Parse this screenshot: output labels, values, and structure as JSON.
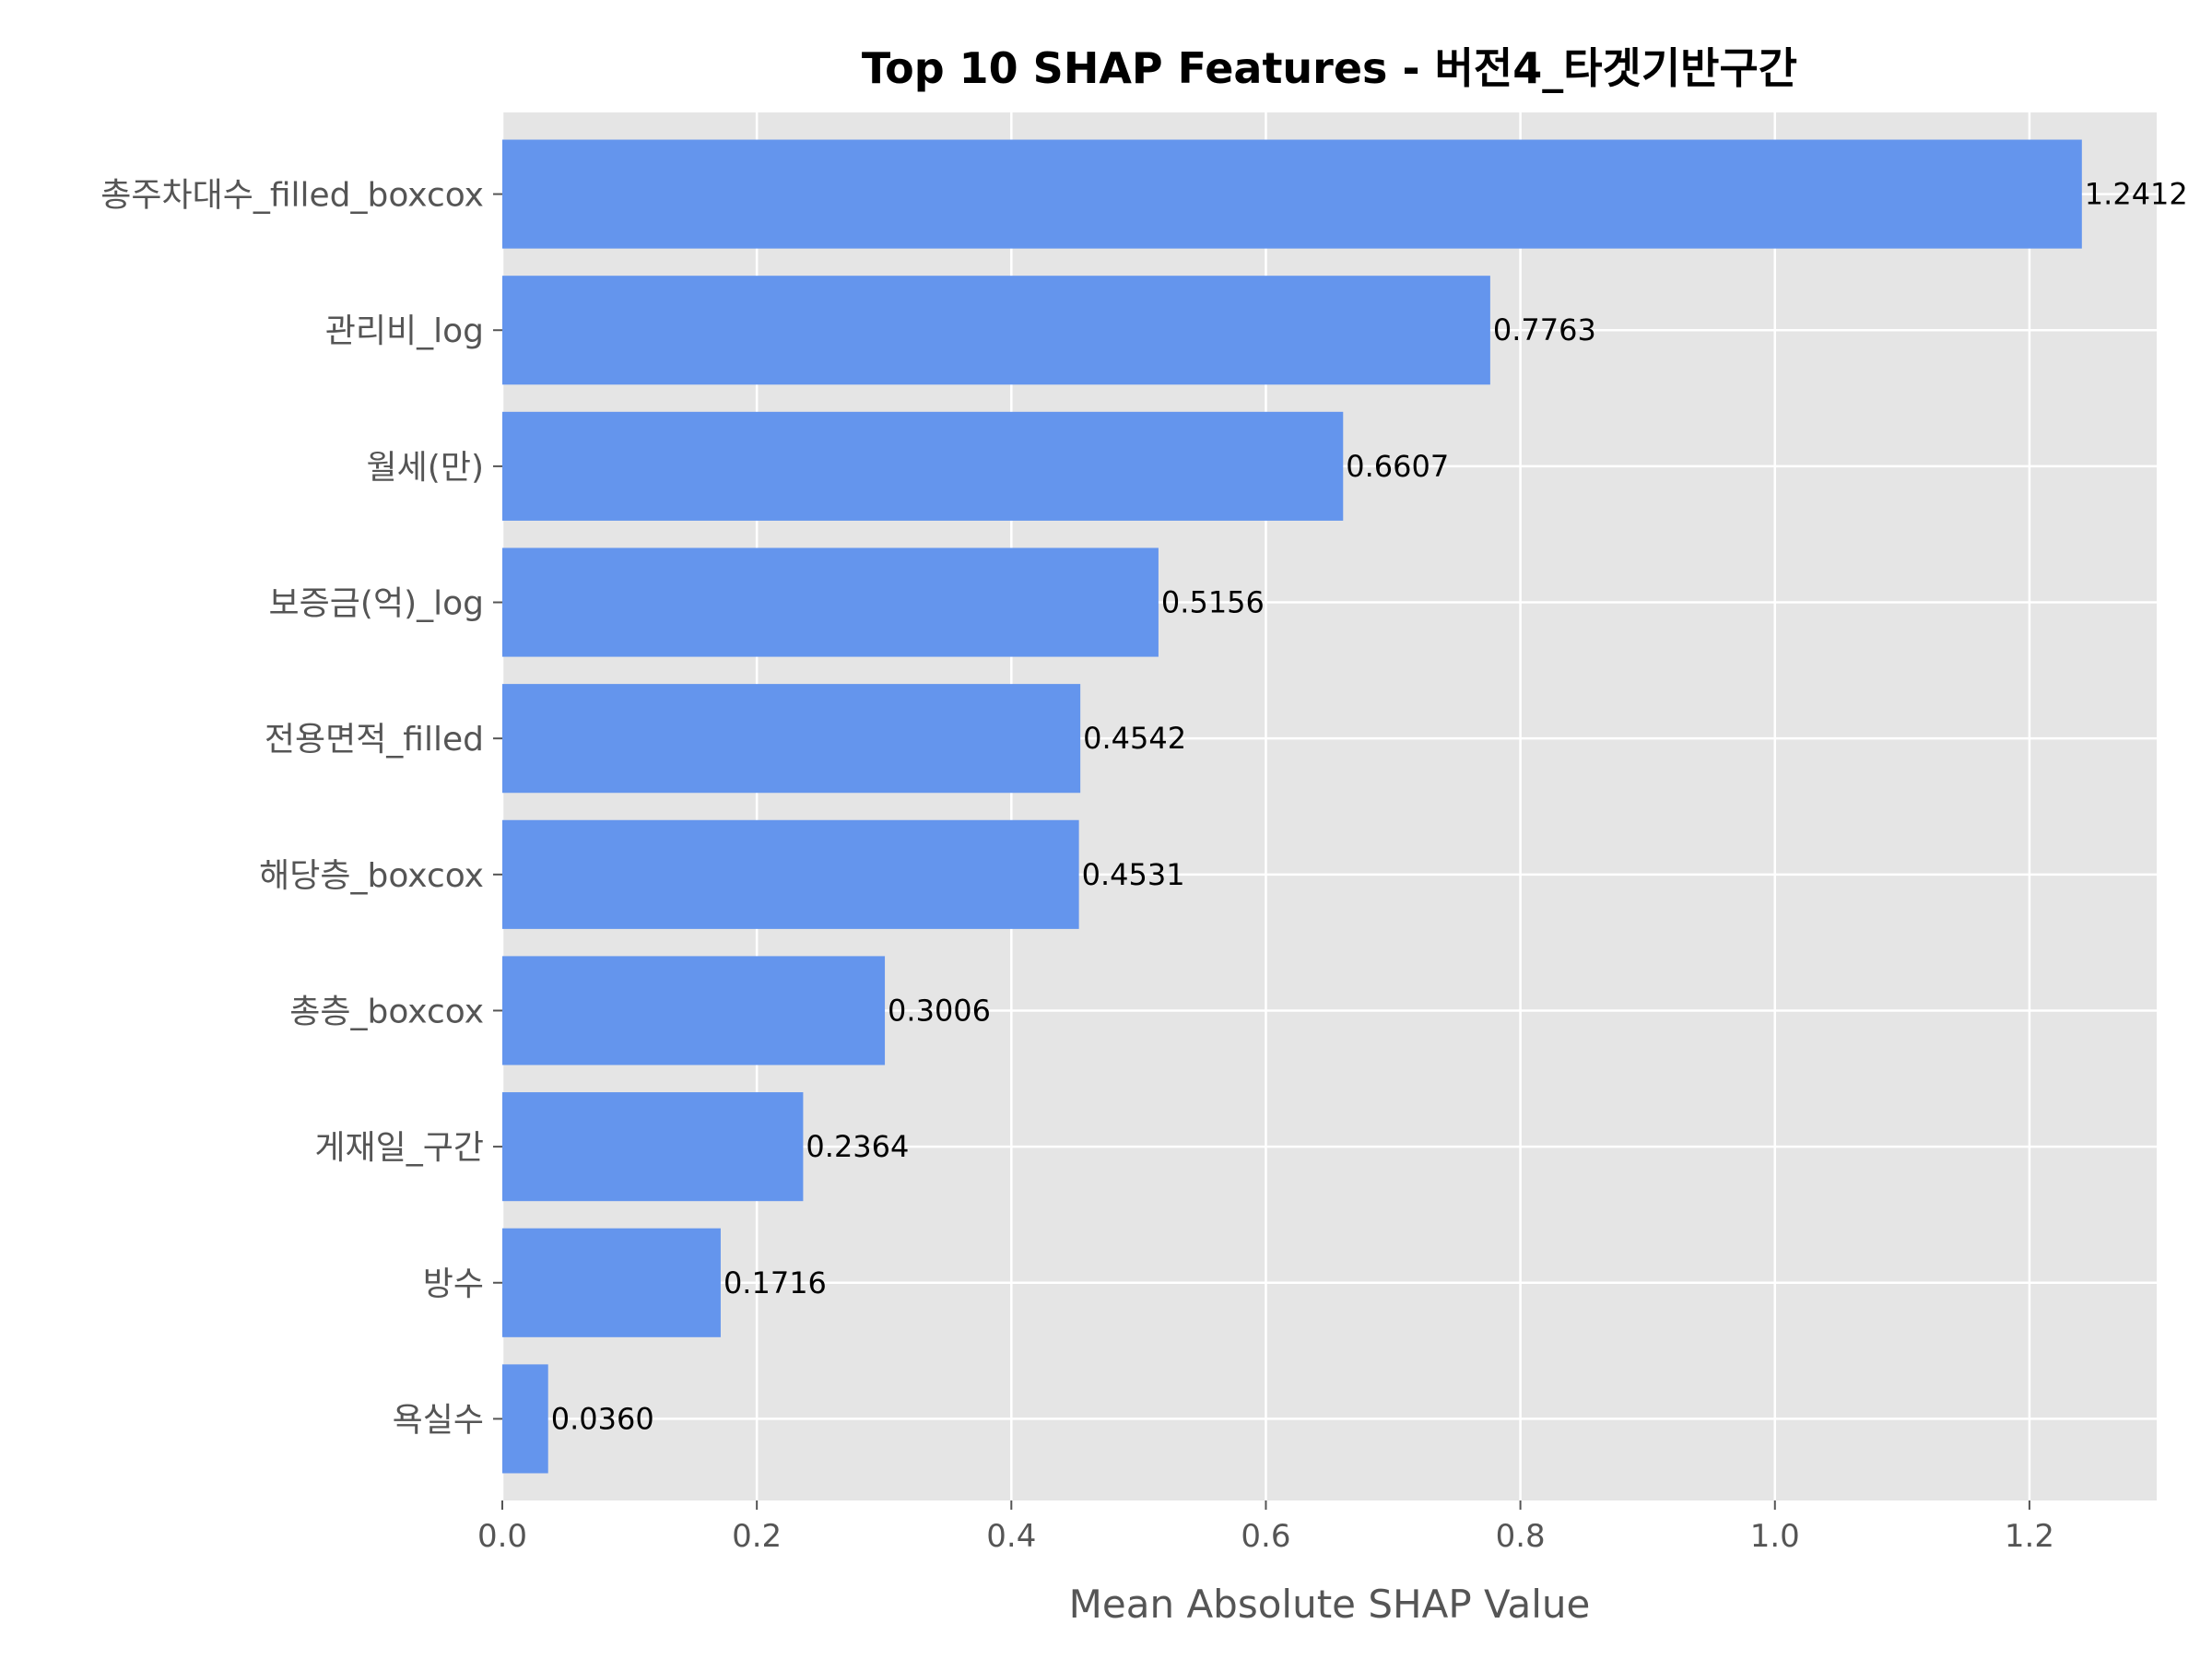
{
  "chart_data": {
    "type": "bar",
    "orientation": "horizontal",
    "title": "Top 10 SHAP Features - 버전4_타겟기반구간",
    "xlabel": "Mean Absolute SHAP Value",
    "ylabel": "",
    "xlim": [
      0,
      1.3
    ],
    "xticks": [
      "0.0",
      "0.2",
      "0.4",
      "0.6",
      "0.8",
      "1.0",
      "1.2"
    ],
    "grid": true,
    "categories": [
      "총주차대수_filled_boxcox",
      "관리비_log",
      "월세(만)",
      "보증금(억)_log",
      "전용면적_filled",
      "해당층_boxcox",
      "총층_boxcox",
      "게재일_구간",
      "방수",
      "욕실수"
    ],
    "values": [
      1.2412,
      0.7763,
      0.6607,
      0.5156,
      0.4542,
      0.4531,
      0.3006,
      0.2364,
      0.1716,
      0.036
    ],
    "value_labels": [
      "1.2412",
      "0.7763",
      "0.6607",
      "0.5156",
      "0.4542",
      "0.4531",
      "0.3006",
      "0.2364",
      "0.1716",
      "0.0360"
    ],
    "colors": {
      "bar": "#6495ED",
      "background": "#E5E5E5",
      "grid": "#FFFFFF"
    }
  }
}
